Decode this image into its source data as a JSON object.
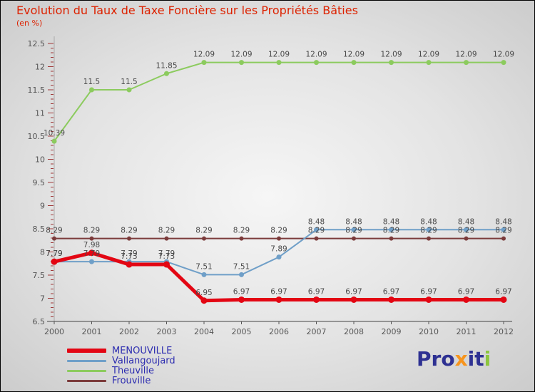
{
  "title": "Evolution du Taux de Taxe Foncière sur les Propriétés Bâties",
  "subtitle": "(en %)",
  "chart_data": {
    "type": "line",
    "x": [
      2000,
      2001,
      2002,
      2003,
      2004,
      2005,
      2006,
      2007,
      2008,
      2009,
      2010,
      2011,
      2012
    ],
    "ylim": [
      6.5,
      12.5
    ],
    "ytick_step": 0.5,
    "grid": false,
    "legend_position": "bottom-left",
    "axis_text_color": "#555555",
    "label_color": "#4a4a4a",
    "tick_color": "#a03838",
    "series": [
      {
        "name": "MENOUVILLE",
        "color": "#e30613",
        "width": 5,
        "marker_r": 4.5,
        "values": [
          7.79,
          7.98,
          7.73,
          7.73,
          6.95,
          6.97,
          6.97,
          6.97,
          6.97,
          6.97,
          6.97,
          6.97,
          6.97
        ]
      },
      {
        "name": "Vallangoujard",
        "color": "#6f9fc8",
        "width": 2,
        "marker_r": 3.5,
        "values": [
          7.79,
          7.79,
          7.79,
          7.79,
          7.51,
          7.51,
          7.89,
          8.48,
          8.48,
          8.48,
          8.48,
          8.48,
          8.48
        ]
      },
      {
        "name": "Theuville",
        "color": "#8ccb5e",
        "width": 2,
        "marker_r": 3.5,
        "values": [
          10.39,
          11.5,
          11.5,
          11.85,
          12.09,
          12.09,
          12.09,
          12.09,
          12.09,
          12.09,
          12.09,
          12.09,
          12.09
        ]
      },
      {
        "name": "Frouville",
        "color": "#7b3b3b",
        "width": 2,
        "marker_r": 3,
        "values": [
          8.29,
          8.29,
          8.29,
          8.29,
          8.29,
          8.29,
          8.29,
          8.29,
          8.29,
          8.29,
          8.29,
          8.29,
          8.29
        ]
      }
    ]
  },
  "legend_text_color": "#2d2db0",
  "logo": {
    "text": "Proxiti",
    "letters": [
      {
        "ch": "P",
        "color": "#2e3192"
      },
      {
        "ch": "r",
        "color": "#2e3192"
      },
      {
        "ch": "o",
        "color": "#2e3192"
      },
      {
        "ch": "x",
        "color": "#f7941d"
      },
      {
        "ch": "i",
        "color": "#2e3192"
      },
      {
        "ch": "t",
        "color": "#2e3192"
      },
      {
        "ch": "i",
        "color": "#8dc63f"
      }
    ]
  }
}
